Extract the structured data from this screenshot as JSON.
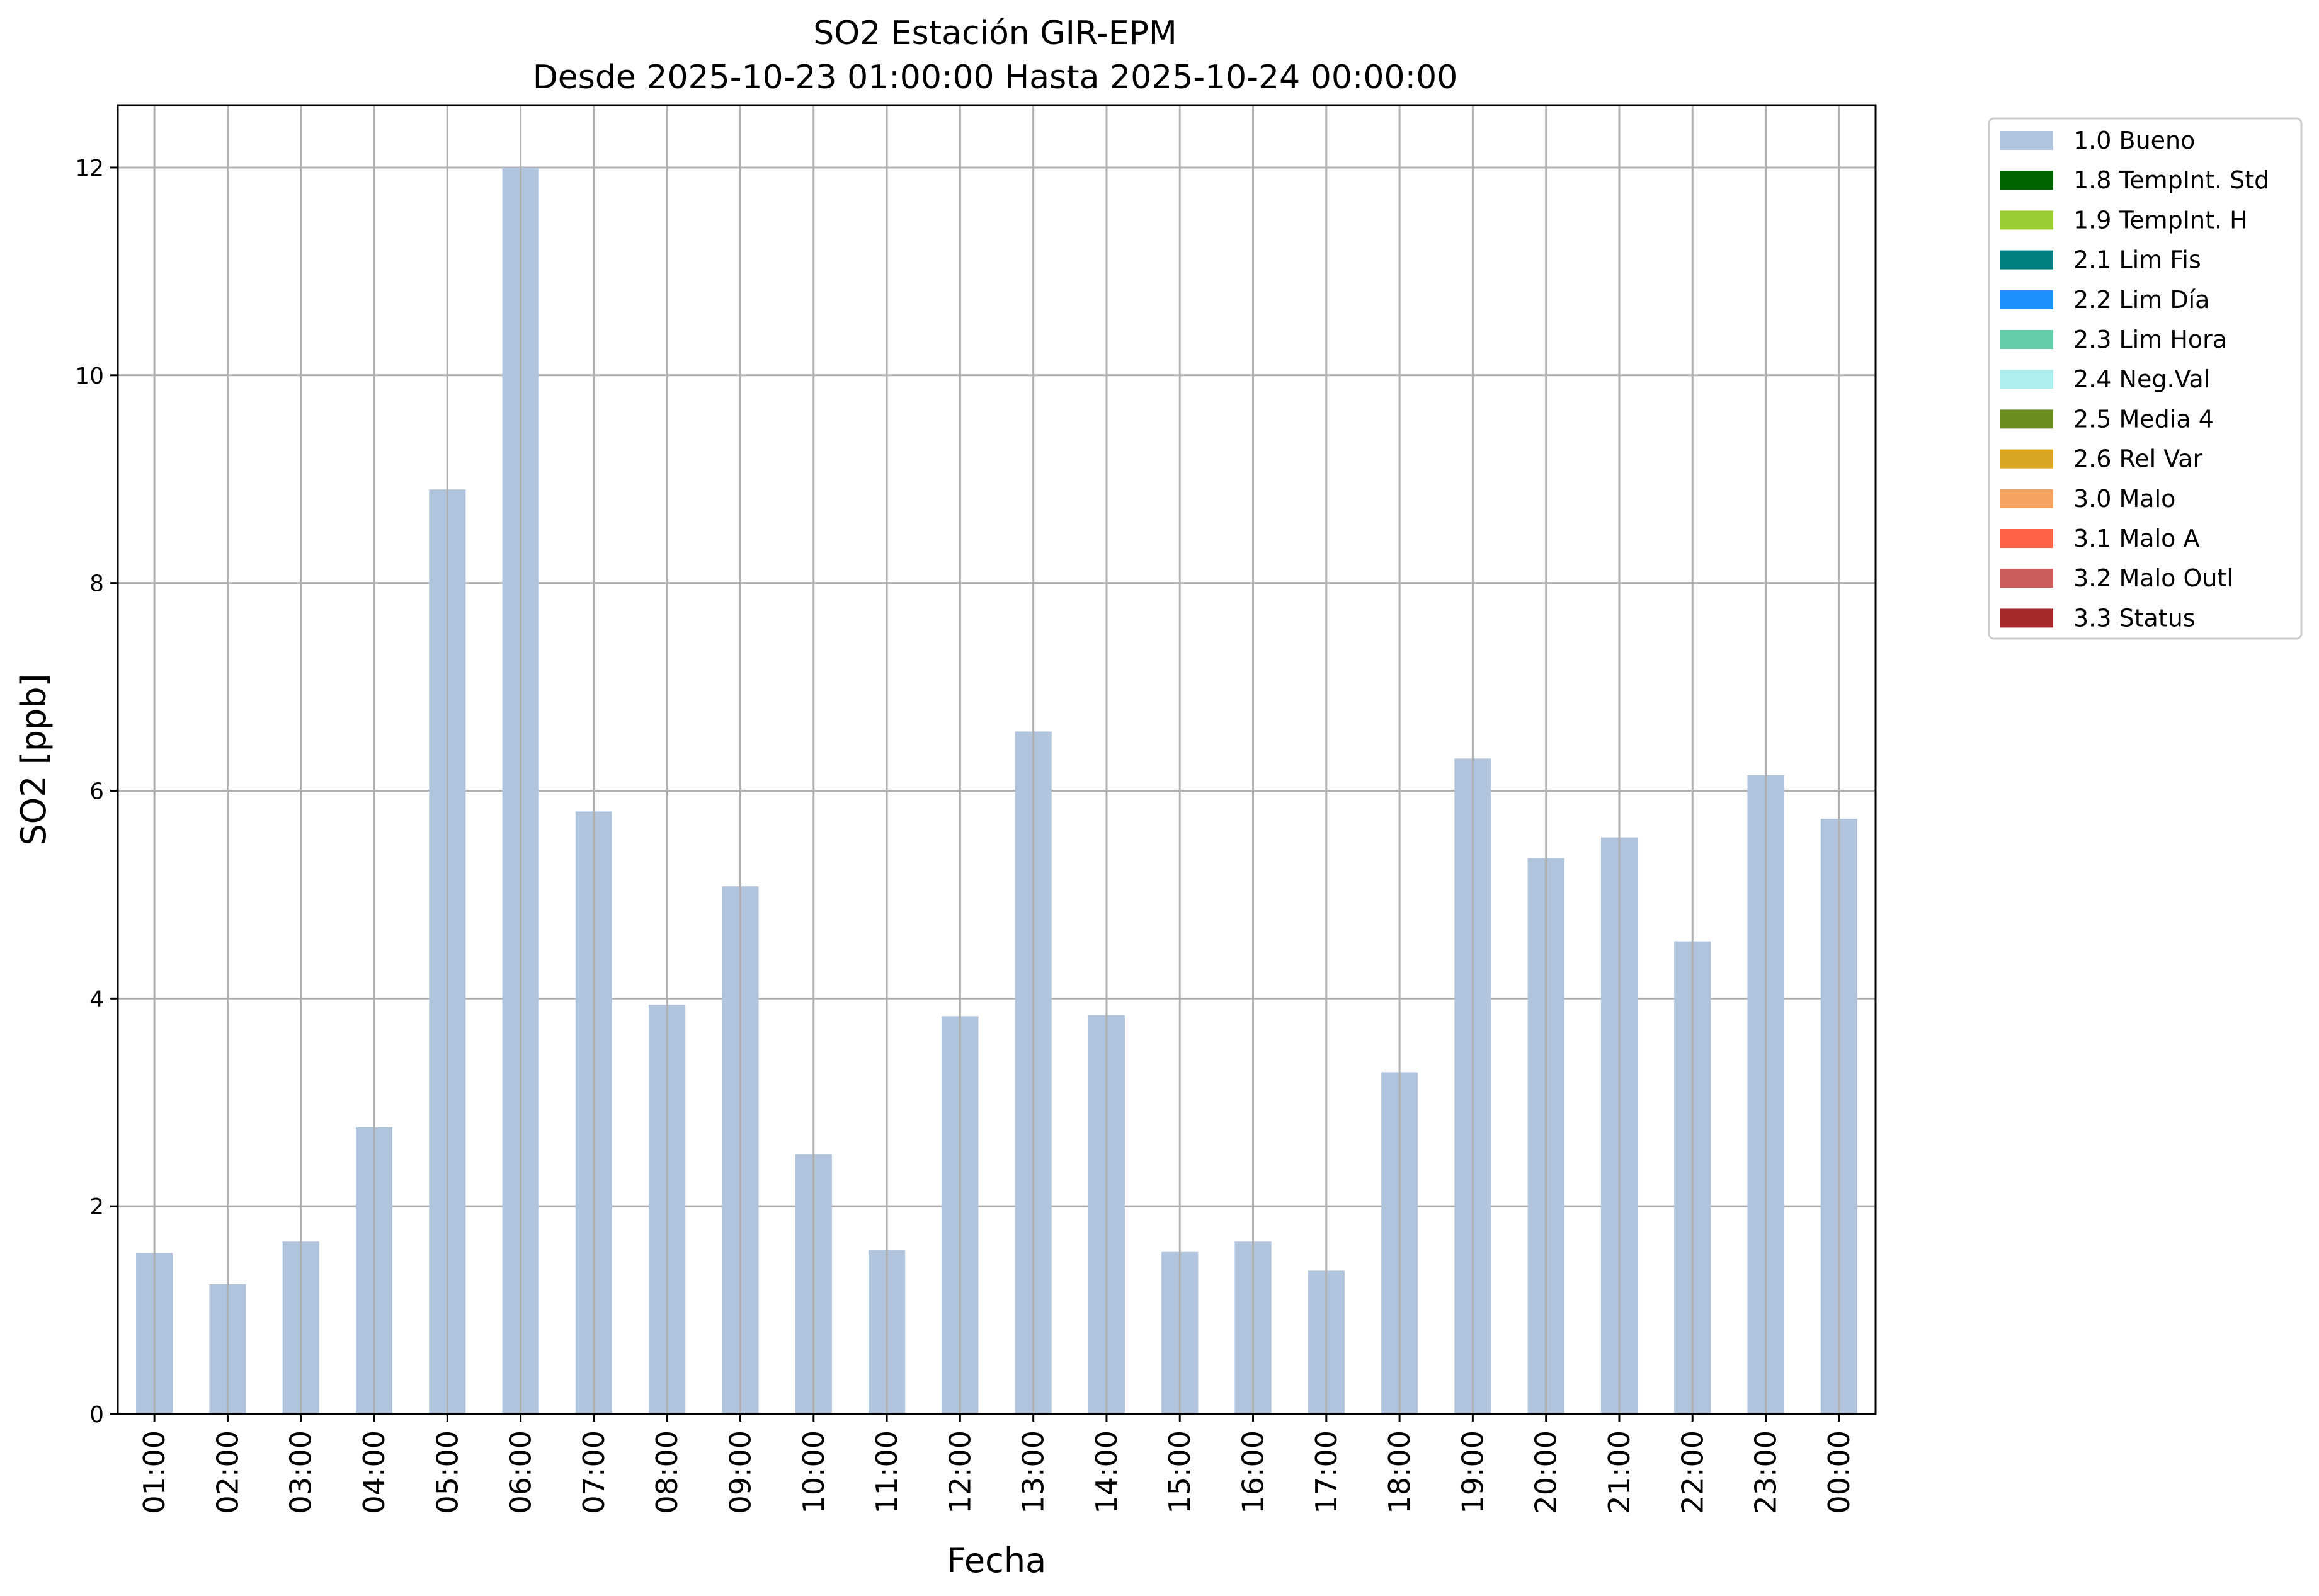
{
  "chart_data": {
    "type": "bar",
    "title": "SO2 Estación GIR-EPM",
    "subtitle": "Desde 2025-10-23 01:00:00 Hasta 2025-10-24 00:00:00",
    "xlabel": "Fecha",
    "ylabel": "SO2 [ppb]",
    "ylim": [
      0,
      12.6
    ],
    "yticks": [
      0,
      2,
      4,
      6,
      8,
      10,
      12
    ],
    "grid": true,
    "legend_placement": "outside-top-right",
    "categories": [
      "01:00",
      "02:00",
      "03:00",
      "04:00",
      "05:00",
      "06:00",
      "07:00",
      "08:00",
      "09:00",
      "10:00",
      "11:00",
      "12:00",
      "13:00",
      "14:00",
      "15:00",
      "16:00",
      "17:00",
      "18:00",
      "19:00",
      "20:00",
      "21:00",
      "22:00",
      "23:00",
      "00:00"
    ],
    "series": [
      {
        "name": "1.0 Bueno",
        "color": "#b0c4de",
        "values": [
          1.55,
          1.25,
          1.66,
          2.76,
          8.9,
          12.0,
          5.8,
          3.94,
          5.08,
          2.5,
          1.58,
          3.83,
          6.57,
          3.84,
          1.56,
          1.66,
          1.38,
          3.29,
          6.31,
          5.35,
          5.55,
          4.55,
          6.15,
          5.73
        ]
      }
    ],
    "legend": [
      {
        "label": "1.0 Bueno",
        "color": "#b0c4de"
      },
      {
        "label": "1.8 TempInt. Std",
        "color": "#006400"
      },
      {
        "label": "1.9 TempInt. H",
        "color": "#9acd32"
      },
      {
        "label": "2.1 Lim Fis",
        "color": "#008080"
      },
      {
        "label": "2.2 Lim Día",
        "color": "#1e90ff"
      },
      {
        "label": "2.3 Lim Hora",
        "color": "#66cdaa"
      },
      {
        "label": "2.4 Neg.Val",
        "color": "#afeeee"
      },
      {
        "label": "2.5 Media 4",
        "color": "#6b8e23"
      },
      {
        "label": "2.6 Rel Var",
        "color": "#daa520"
      },
      {
        "label": "3.0 Malo",
        "color": "#f4a460"
      },
      {
        "label": "3.1 Malo A",
        "color": "#ff6347"
      },
      {
        "label": "3.2 Malo Outl",
        "color": "#cd5c5c"
      },
      {
        "label": "3.3 Status",
        "color": "#a52a2a"
      }
    ]
  }
}
